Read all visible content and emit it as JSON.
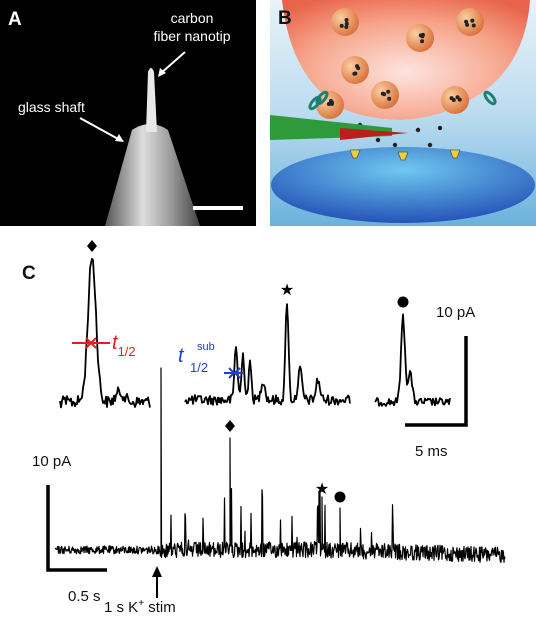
{
  "panels": {
    "a": {
      "label": "A",
      "annotations": {
        "tip": [
          "carbon",
          "fiber nanotip"
        ],
        "shaft": "glass shaft"
      }
    },
    "b": {
      "label": "B"
    },
    "c": {
      "label": "C",
      "t_half": {
        "t": "t",
        "sub": "1/2"
      },
      "t_sub": {
        "t": "t",
        "sup": "sub",
        "sub": "1/2"
      },
      "inset_scale": {
        "y": "10 pA",
        "x": "5 ms"
      },
      "main_scale": {
        "y": "10 pA",
        "x": "0.5 s"
      },
      "stim": {
        "pre": "1 s K",
        "sup": "+",
        "post": " stim"
      }
    }
  }
}
